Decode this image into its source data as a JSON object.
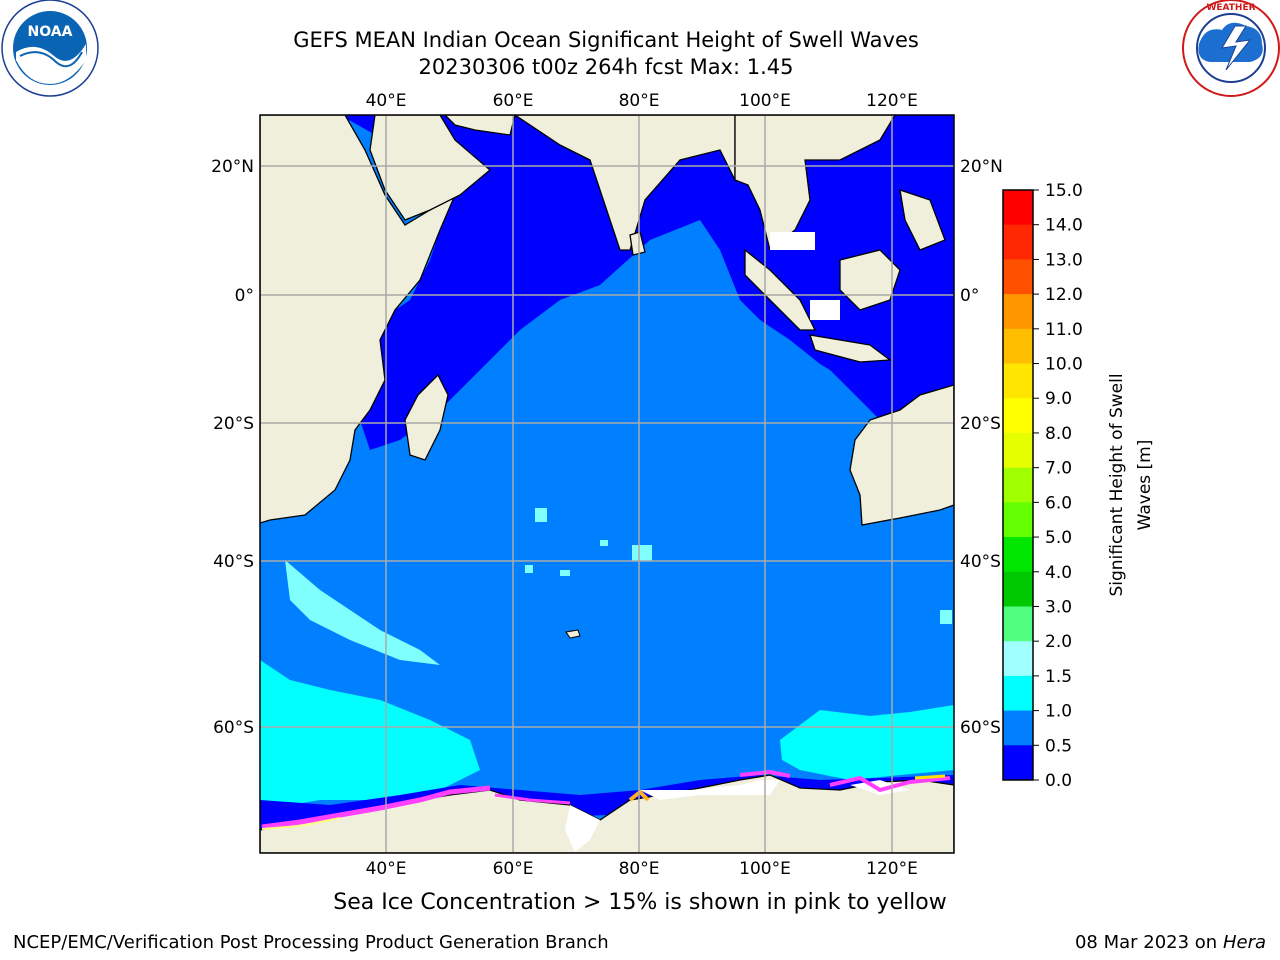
{
  "title": {
    "line1": "GEFS MEAN Indian Ocean Significant Height of Swell Waves",
    "line2": "20230306 t00z 264h fcst   Max: 1.45"
  },
  "note": "Sea Ice Concentration > 15% is shown in pink to yellow",
  "footer": {
    "left": "NCEP/EMC/Verification Post Processing Product Generation Branch",
    "right_date": "08 Mar 2023 on",
    "right_machine": "Hera"
  },
  "logos": {
    "noaa": "NOAA",
    "noaa_ring": "NATIONAL OCEANIC AND ATMOSPHERIC ADMINISTRATION · U.S. DEPARTMENT OF COMMERCE",
    "nws_ring": "NATIONAL WEATHER SERVICE"
  },
  "map": {
    "lon_labels": [
      "40°E",
      "60°E",
      "80°E",
      "100°E",
      "120°E"
    ],
    "lat_labels": [
      "20°N",
      "0°",
      "20°S",
      "40°S",
      "60°S"
    ],
    "colors": {
      "ocean_low": "#0000ff",
      "ocean_mid": "#0080ff",
      "ocean_cyan": "#00ffff",
      "ocean_lightcyan": "#80ffff",
      "land": "#efefdc",
      "ice": "#ffffff",
      "ice_edge": "#ff40ff"
    }
  },
  "colorbar": {
    "label_line1": "Significant Height of Swell",
    "label_line2": "Waves [m]",
    "ticks": [
      "15.0",
      "14.0",
      "13.0",
      "12.0",
      "11.0",
      "10.0",
      "9.0",
      "8.0",
      "7.0",
      "6.0",
      "5.0",
      "4.0",
      "3.0",
      "2.0",
      "1.5",
      "1.0",
      "0.5",
      "0.0"
    ],
    "colors": [
      "#ff0000",
      "#ff2800",
      "#ff5000",
      "#ff7800",
      "#ff9600",
      "#ffbe00",
      "#ffe600",
      "#ffff00",
      "#e6ff00",
      "#c8ff00",
      "#a0ff00",
      "#64ff00",
      "#00e600",
      "#00c800",
      "#50ff80",
      "#a0ffff",
      "#50ffff",
      "#00ffff",
      "#0080ff",
      "#0000ff"
    ]
  }
}
